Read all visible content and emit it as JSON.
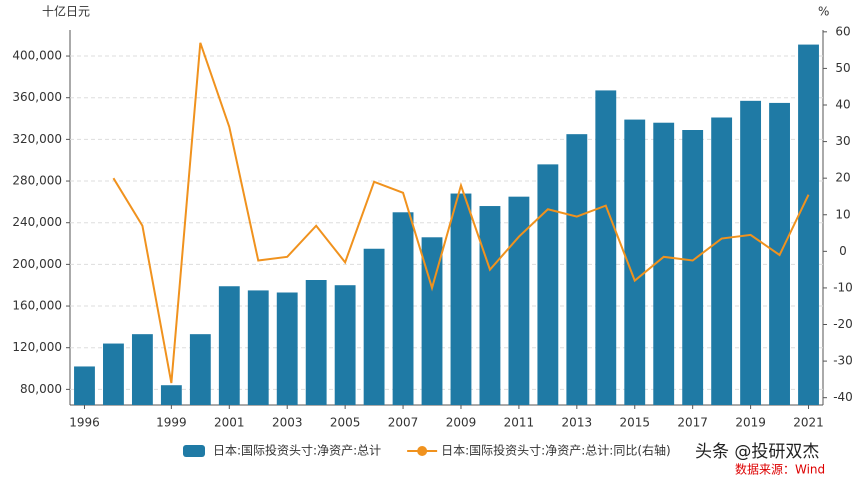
{
  "chart_data": {
    "type": "bar-line",
    "y_unit": "十亿日元",
    "y2_unit": "%",
    "categories": [
      "1996",
      null,
      null,
      "1999",
      null,
      "2001",
      null,
      "2003",
      null,
      "2005",
      null,
      "2007",
      null,
      "2009",
      null,
      "2011",
      null,
      "2013",
      null,
      "2015",
      null,
      "2017",
      null,
      "2019",
      null,
      "2021"
    ],
    "series": [
      {
        "name": "日本:国际投资头寸:净资产:总计",
        "type": "bar",
        "color": "#1f7aa5",
        "values": [
          102000,
          124000,
          133000,
          84000,
          133000,
          179000,
          175000,
          173000,
          185000,
          180000,
          215000,
          250000,
          226000,
          268000,
          256000,
          265000,
          296000,
          325000,
          367000,
          339000,
          336000,
          329000,
          341000,
          357000,
          355000,
          411000
        ]
      },
      {
        "name": "日本:国际投资头寸:净资产:总计:同比(右轴)",
        "type": "line",
        "axis": "y2",
        "color": "#f0921e",
        "values": [
          null,
          20,
          7,
          -36,
          57,
          34,
          -2.5,
          -1.5,
          7,
          -3,
          19,
          16,
          -10,
          18,
          -5,
          4,
          11.5,
          9.5,
          12.5,
          -8,
          -1.5,
          -2.5,
          3.5,
          4.5,
          -1,
          15.5
        ]
      }
    ],
    "ylim": [
      65000,
      425000
    ],
    "yticks": [
      {
        "value": 80000,
        "label": "80,000"
      },
      {
        "value": 120000,
        "label": "120,000"
      },
      {
        "value": 160000,
        "label": "160,000"
      },
      {
        "value": 200000,
        "label": "200,000"
      },
      {
        "value": 240000,
        "label": "240,000"
      },
      {
        "value": 280000,
        "label": "280,000"
      },
      {
        "value": 320000,
        "label": "320,000"
      },
      {
        "value": 360000,
        "label": "360,000"
      },
      {
        "value": 400000,
        "label": "400,000"
      }
    ],
    "y2lim": [
      -42,
      60.5
    ],
    "y2ticks": [
      -40,
      -30,
      -20,
      -10,
      0,
      10,
      20,
      30,
      40,
      50,
      60
    ],
    "grid": true,
    "legend": "bottom",
    "watermark": "头条 @投研双杰",
    "source": "数据来源：Wind"
  }
}
